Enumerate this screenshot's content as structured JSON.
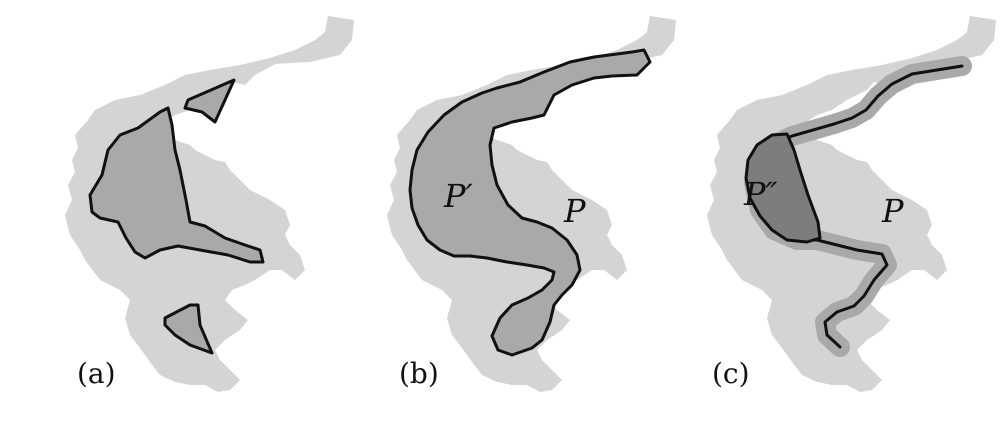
{
  "panels": [
    {
      "label": "(a)",
      "polygons": []
    },
    {
      "label": "(b)",
      "polygons": [
        "P′",
        "P"
      ]
    },
    {
      "label": "(c)",
      "polygons": [
        "P″",
        "P"
      ]
    }
  ],
  "colors": {
    "outer_region": "#d4d4d4",
    "inner_region": "#a9a9a9",
    "core_region": "#7d7d7d",
    "outline": "#111111"
  }
}
